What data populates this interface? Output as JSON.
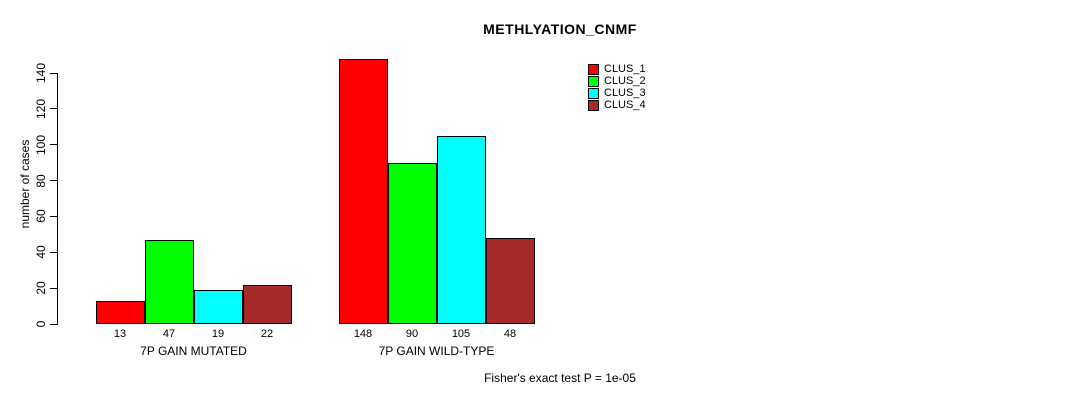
{
  "title": "METHLYATION_CNMF",
  "y_axis": {
    "label": "number of cases",
    "ticks": [
      0,
      20,
      40,
      60,
      80,
      100,
      120,
      140
    ]
  },
  "legend": {
    "items": [
      {
        "label": "CLUS_1",
        "color": "#FF0000"
      },
      {
        "label": "CLUS_2",
        "color": "#00FF00"
      },
      {
        "label": "CLUS_3",
        "color": "#00FFFF"
      },
      {
        "label": "CLUS_4",
        "color": "#A52A2A"
      }
    ]
  },
  "groups": [
    {
      "label": "7P GAIN MUTATED",
      "values": [
        13,
        47,
        19,
        22
      ]
    },
    {
      "label": "7P GAIN WILD-TYPE",
      "values": [
        148,
        90,
        105,
        48
      ]
    }
  ],
  "footer": "Fisher's exact test P = 1e-05",
  "chart_data": {
    "type": "bar",
    "title": "METHLYATION_CNMF",
    "categories": [
      "7P GAIN MUTATED",
      "7P GAIN WILD-TYPE"
    ],
    "series": [
      {
        "name": "CLUS_1",
        "color": "#FF0000",
        "values": [
          13,
          148
        ]
      },
      {
        "name": "CLUS_2",
        "color": "#00FF00",
        "values": [
          47,
          90
        ]
      },
      {
        "name": "CLUS_3",
        "color": "#00FFFF",
        "values": [
          19,
          105
        ]
      },
      {
        "name": "CLUS_4",
        "color": "#A52A2A",
        "values": [
          22,
          48
        ]
      }
    ],
    "xlabel": "",
    "ylabel": "number of cases",
    "ylim": [
      0,
      140
    ],
    "yticks": [
      0,
      20,
      40,
      60,
      80,
      100,
      120,
      140
    ],
    "bar_value_labels": true,
    "legend_position": "top-right",
    "grid": false,
    "annotation": "Fisher's exact test P = 1e-05"
  }
}
